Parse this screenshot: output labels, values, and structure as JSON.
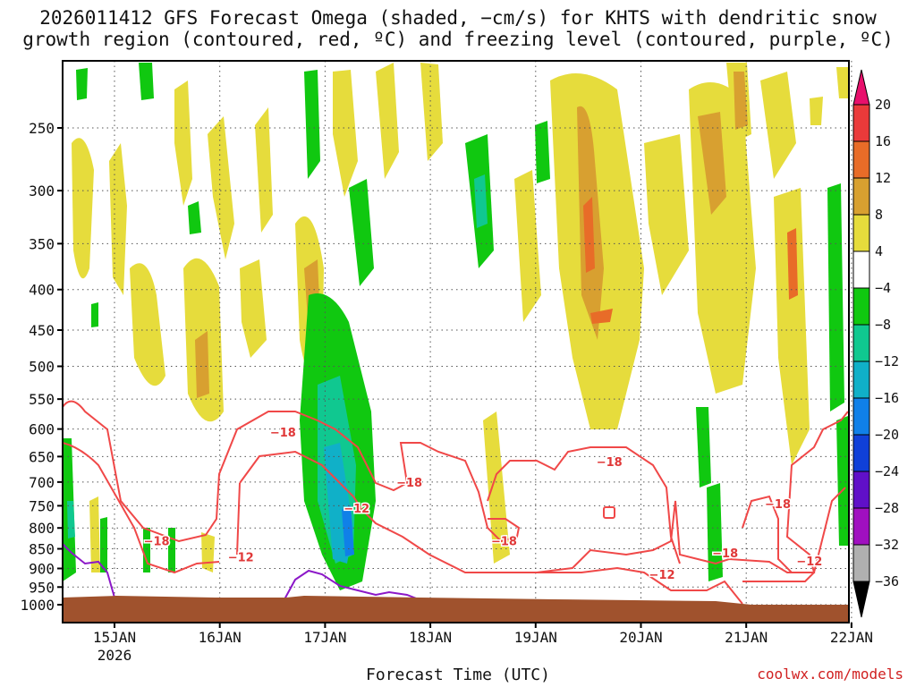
{
  "chart_data": {
    "type": "heatmap",
    "title_line1": "2026011412 GFS Forecast Omega (shaded, −cm/s) for KHTS with dendritic snow",
    "title_line2": "growth region (contoured, red, ºC) and freezing level (contoured, purple, ºC)",
    "xlabel": "Forecast Time (UTC)",
    "ylabel": "",
    "credit": "coolwx.com/models",
    "y_ticks": [
      250,
      300,
      350,
      400,
      450,
      500,
      550,
      600,
      650,
      700,
      750,
      800,
      850,
      900,
      950,
      1000
    ],
    "ylim": [
      1000,
      200
    ],
    "x_ticks": [
      "15JAN",
      "16JAN",
      "17JAN",
      "18JAN",
      "19JAN",
      "20JAN",
      "21JAN",
      "22JAN"
    ],
    "x_year": "2026",
    "colorbar_labels": [
      "20",
      "16",
      "12",
      "8",
      "4",
      "−4",
      "−8",
      "−12",
      "−16",
      "−20",
      "−24",
      "−28",
      "−32",
      "−36"
    ],
    "contour_labels": [
      {
        "text": "−18",
        "day": 16.6,
        "p": 605
      },
      {
        "text": "−18",
        "day": 17.8,
        "p": 700
      },
      {
        "text": "−12",
        "day": 17.3,
        "p": 755
      },
      {
        "text": "−18",
        "day": 15.4,
        "p": 830
      },
      {
        "text": "−12",
        "day": 16.2,
        "p": 870
      },
      {
        "text": "−18",
        "day": 18.7,
        "p": 830
      },
      {
        "text": "−18",
        "day": 19.7,
        "p": 660
      },
      {
        "text": "−12",
        "day": 20.2,
        "p": 915
      },
      {
        "text": "−18",
        "day": 20.8,
        "p": 860
      },
      {
        "text": "−18",
        "day": 21.3,
        "p": 745
      },
      {
        "text": "−12",
        "day": 21.6,
        "p": 880
      }
    ]
  },
  "colors": {
    "c20": "#e8106c",
    "c16": "#ea3a3a",
    "c12": "#e86c28",
    "c8": "#d8a030",
    "c4": "#e6dc3c",
    "cw": "#ffffff",
    "cg1": "#10c810",
    "cg2": "#10c890",
    "cc": "#10b0c8",
    "cb1": "#1080e8",
    "cb2": "#1040d8",
    "cp1": "#6010c8",
    "cp2": "#a010c0",
    "cgr": "#b0b0b0",
    "ck": "#000000",
    "red": "#f04848",
    "purple": "#8c18c8",
    "ground": "#a0522d"
  }
}
